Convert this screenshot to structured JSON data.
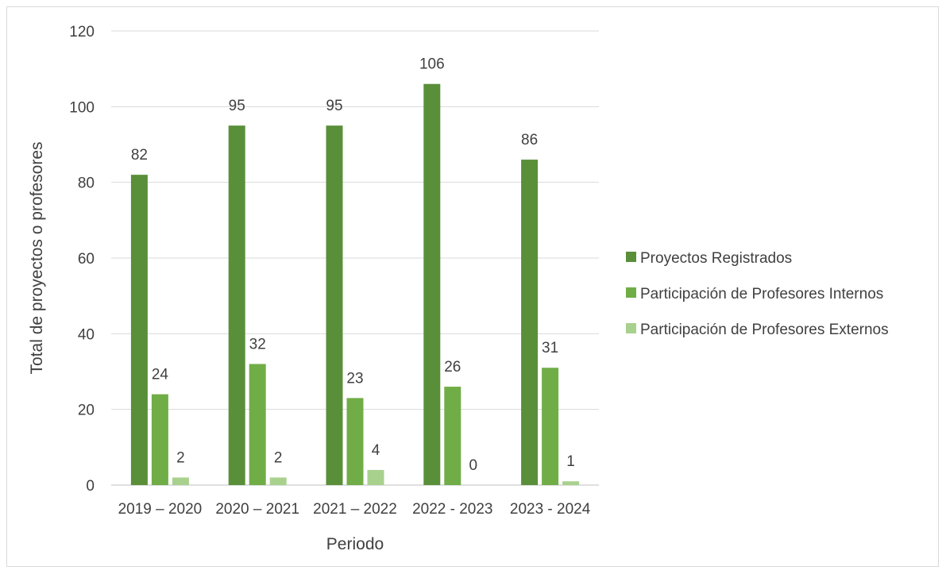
{
  "chart_data": {
    "type": "bar",
    "xlabel": "Periodo",
    "ylabel": "Total de proyectos o profesores",
    "ylim": [
      0,
      120
    ],
    "yticks": [
      0,
      20,
      40,
      60,
      80,
      100,
      120
    ],
    "categories": [
      "2019 – 2020",
      "2020 – 2021",
      "2021 – 2022",
      "2022 - 2023",
      "2023 - 2024"
    ],
    "series": [
      {
        "name": "Proyectos Registrados",
        "color": "#5a8f3a",
        "values": [
          82,
          95,
          95,
          106,
          86
        ]
      },
      {
        "name": "Participación de Profesores Internos",
        "color": "#70ad47",
        "values": [
          24,
          32,
          23,
          26,
          31
        ]
      },
      {
        "name": "Participación de Profesores Externos",
        "color": "#a9d18e",
        "values": [
          2,
          2,
          4,
          0,
          1
        ]
      }
    ],
    "grid": true,
    "legend": "right"
  }
}
